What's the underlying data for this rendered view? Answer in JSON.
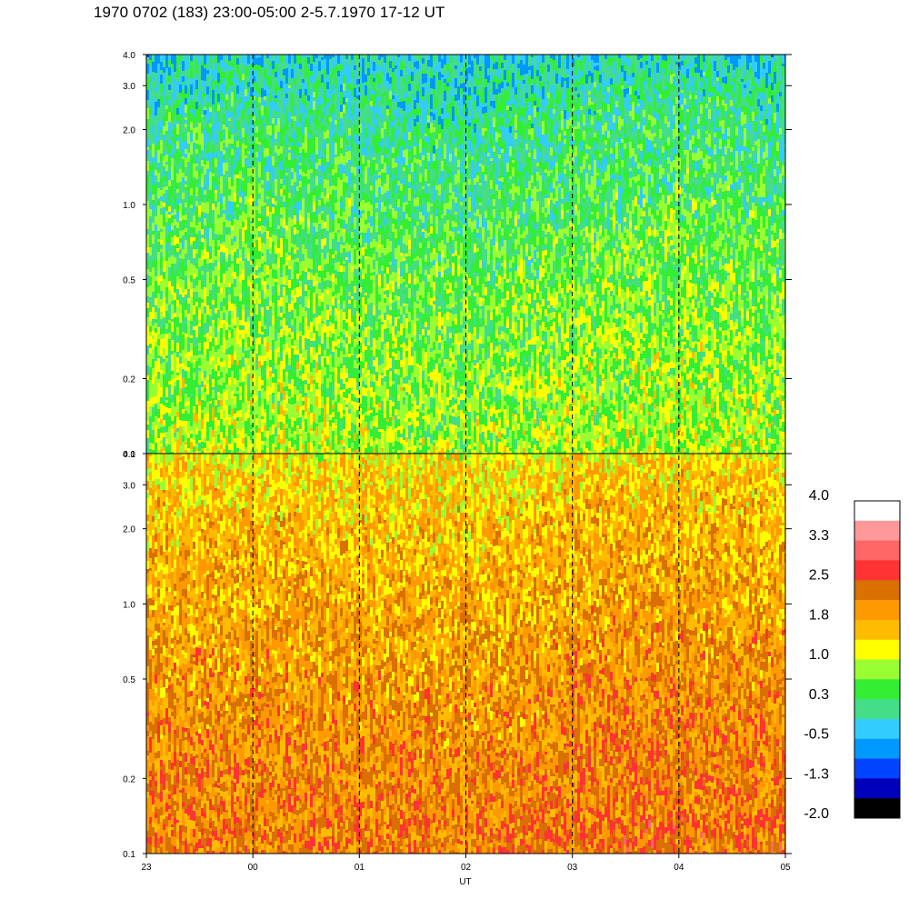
{
  "chart_data": {
    "type": "heatmap",
    "title": "1970 0702 (183) 23:00-05:00 2-5.7.1970  17-12 UT",
    "xlabel": "UT",
    "x_tick_labels": [
      "23",
      "00",
      "01",
      "02",
      "03",
      "04",
      "05"
    ],
    "x_range_hours_ut": [
      23,
      29
    ],
    "y_scale": "log",
    "y_range": [
      0.1,
      4.0
    ],
    "y_tick_labels": [
      "0.1",
      "0.2",
      "0.5",
      "1.0",
      "2.0",
      "3.0",
      "4.0"
    ],
    "y_tick_values": [
      0.1,
      0.2,
      0.5,
      1.0,
      2.0,
      3.0,
      4.0
    ],
    "panels": [
      {
        "name": "upper",
        "dominant_levels": [
          "green",
          "yellow-green",
          "yellow"
        ],
        "mean_level_by_hour": [
          0.9,
          1.1,
          0.9,
          0.7,
          1.0,
          1.2,
          0.8
        ],
        "high_freq_level": -0.3,
        "low_freq_level": 0.9
      },
      {
        "name": "lower",
        "dominant_levels": [
          "yellow",
          "orange",
          "dark-orange"
        ],
        "mean_level_by_hour": [
          1.9,
          2.0,
          1.9,
          1.8,
          2.1,
          2.2,
          2.1
        ],
        "high_freq_level": 0.9,
        "low_freq_level": 1.9
      }
    ],
    "colorbar": {
      "tick_labels": [
        "4.0",
        "3.3",
        "2.5",
        "1.8",
        "1.0",
        "0.3",
        "-0.5",
        "-1.3",
        "-2.0"
      ],
      "colors_top_to_bottom": [
        "#ffffff",
        "#ff9999",
        "#ff6666",
        "#ff3333",
        "#d97000",
        "#ff9900",
        "#ffbb00",
        "#ffff00",
        "#99ff33",
        "#33ee33",
        "#44dd88",
        "#33ccff",
        "#0099ff",
        "#0044ff",
        "#0000bb",
        "#000000"
      ]
    },
    "dashed_vertical_lines_at": [
      "00",
      "01",
      "02",
      "03",
      "04"
    ],
    "grid": false
  }
}
